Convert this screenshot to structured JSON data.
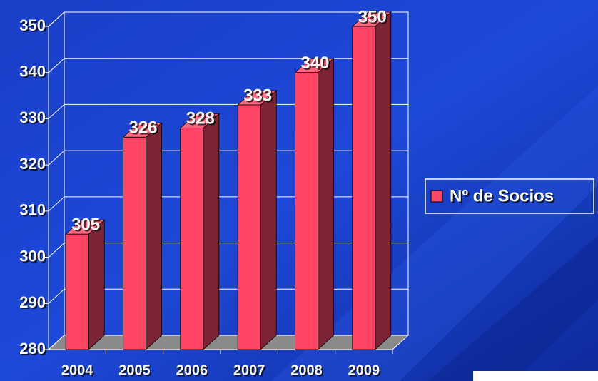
{
  "chart_data": {
    "type": "bar3d",
    "categories": [
      "2004",
      "2005",
      "2006",
      "2007",
      "2008",
      "2009"
    ],
    "series": [
      {
        "name": "Nº de Socios",
        "color": "#ff4466",
        "values": [
          305,
          326,
          328,
          333,
          340,
          350
        ]
      }
    ],
    "ylim": [
      280,
      350
    ],
    "yticks": [
      280,
      290,
      300,
      310,
      320,
      330,
      340,
      350
    ],
    "grid": true,
    "legend": "right"
  }
}
